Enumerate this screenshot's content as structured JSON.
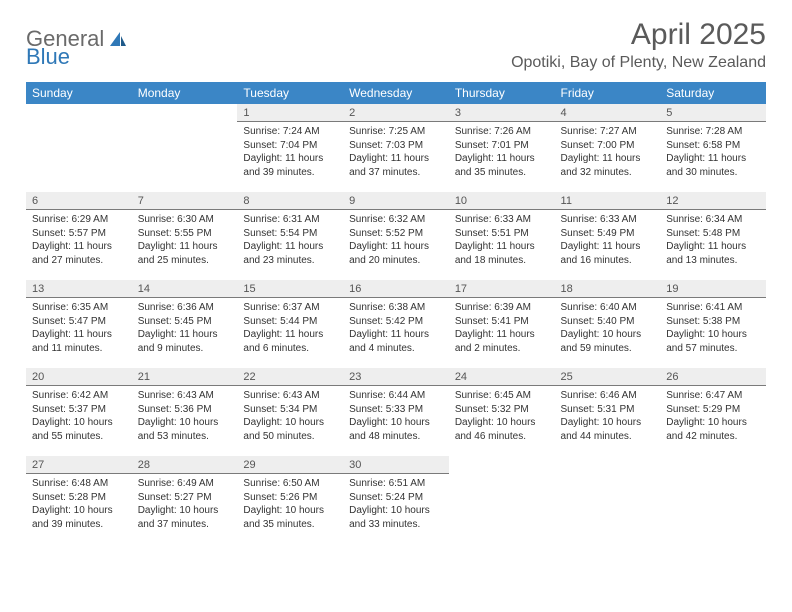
{
  "brand": {
    "word1": "General",
    "word2": "Blue"
  },
  "header": {
    "month_title": "April 2025",
    "location": "Opotiki, Bay of Plenty, New Zealand"
  },
  "colors": {
    "header_blue": "#3b86c6",
    "daynum_bg": "#eeeeee",
    "daynum_border": "#7a7a7a",
    "text": "#333333",
    "logo_gray": "#6a6a6a",
    "logo_blue": "#2f78b7"
  },
  "day_labels": [
    "Sunday",
    "Monday",
    "Tuesday",
    "Wednesday",
    "Thursday",
    "Friday",
    "Saturday"
  ],
  "weeks": [
    [
      {
        "n": "",
        "sr": "",
        "ss": "",
        "dl": ""
      },
      {
        "n": "",
        "sr": "",
        "ss": "",
        "dl": ""
      },
      {
        "n": "1",
        "sr": "Sunrise: 7:24 AM",
        "ss": "Sunset: 7:04 PM",
        "dl": "Daylight: 11 hours and 39 minutes."
      },
      {
        "n": "2",
        "sr": "Sunrise: 7:25 AM",
        "ss": "Sunset: 7:03 PM",
        "dl": "Daylight: 11 hours and 37 minutes."
      },
      {
        "n": "3",
        "sr": "Sunrise: 7:26 AM",
        "ss": "Sunset: 7:01 PM",
        "dl": "Daylight: 11 hours and 35 minutes."
      },
      {
        "n": "4",
        "sr": "Sunrise: 7:27 AM",
        "ss": "Sunset: 7:00 PM",
        "dl": "Daylight: 11 hours and 32 minutes."
      },
      {
        "n": "5",
        "sr": "Sunrise: 7:28 AM",
        "ss": "Sunset: 6:58 PM",
        "dl": "Daylight: 11 hours and 30 minutes."
      }
    ],
    [
      {
        "n": "6",
        "sr": "Sunrise: 6:29 AM",
        "ss": "Sunset: 5:57 PM",
        "dl": "Daylight: 11 hours and 27 minutes."
      },
      {
        "n": "7",
        "sr": "Sunrise: 6:30 AM",
        "ss": "Sunset: 5:55 PM",
        "dl": "Daylight: 11 hours and 25 minutes."
      },
      {
        "n": "8",
        "sr": "Sunrise: 6:31 AM",
        "ss": "Sunset: 5:54 PM",
        "dl": "Daylight: 11 hours and 23 minutes."
      },
      {
        "n": "9",
        "sr": "Sunrise: 6:32 AM",
        "ss": "Sunset: 5:52 PM",
        "dl": "Daylight: 11 hours and 20 minutes."
      },
      {
        "n": "10",
        "sr": "Sunrise: 6:33 AM",
        "ss": "Sunset: 5:51 PM",
        "dl": "Daylight: 11 hours and 18 minutes."
      },
      {
        "n": "11",
        "sr": "Sunrise: 6:33 AM",
        "ss": "Sunset: 5:49 PM",
        "dl": "Daylight: 11 hours and 16 minutes."
      },
      {
        "n": "12",
        "sr": "Sunrise: 6:34 AM",
        "ss": "Sunset: 5:48 PM",
        "dl": "Daylight: 11 hours and 13 minutes."
      }
    ],
    [
      {
        "n": "13",
        "sr": "Sunrise: 6:35 AM",
        "ss": "Sunset: 5:47 PM",
        "dl": "Daylight: 11 hours and 11 minutes."
      },
      {
        "n": "14",
        "sr": "Sunrise: 6:36 AM",
        "ss": "Sunset: 5:45 PM",
        "dl": "Daylight: 11 hours and 9 minutes."
      },
      {
        "n": "15",
        "sr": "Sunrise: 6:37 AM",
        "ss": "Sunset: 5:44 PM",
        "dl": "Daylight: 11 hours and 6 minutes."
      },
      {
        "n": "16",
        "sr": "Sunrise: 6:38 AM",
        "ss": "Sunset: 5:42 PM",
        "dl": "Daylight: 11 hours and 4 minutes."
      },
      {
        "n": "17",
        "sr": "Sunrise: 6:39 AM",
        "ss": "Sunset: 5:41 PM",
        "dl": "Daylight: 11 hours and 2 minutes."
      },
      {
        "n": "18",
        "sr": "Sunrise: 6:40 AM",
        "ss": "Sunset: 5:40 PM",
        "dl": "Daylight: 10 hours and 59 minutes."
      },
      {
        "n": "19",
        "sr": "Sunrise: 6:41 AM",
        "ss": "Sunset: 5:38 PM",
        "dl": "Daylight: 10 hours and 57 minutes."
      }
    ],
    [
      {
        "n": "20",
        "sr": "Sunrise: 6:42 AM",
        "ss": "Sunset: 5:37 PM",
        "dl": "Daylight: 10 hours and 55 minutes."
      },
      {
        "n": "21",
        "sr": "Sunrise: 6:43 AM",
        "ss": "Sunset: 5:36 PM",
        "dl": "Daylight: 10 hours and 53 minutes."
      },
      {
        "n": "22",
        "sr": "Sunrise: 6:43 AM",
        "ss": "Sunset: 5:34 PM",
        "dl": "Daylight: 10 hours and 50 minutes."
      },
      {
        "n": "23",
        "sr": "Sunrise: 6:44 AM",
        "ss": "Sunset: 5:33 PM",
        "dl": "Daylight: 10 hours and 48 minutes."
      },
      {
        "n": "24",
        "sr": "Sunrise: 6:45 AM",
        "ss": "Sunset: 5:32 PM",
        "dl": "Daylight: 10 hours and 46 minutes."
      },
      {
        "n": "25",
        "sr": "Sunrise: 6:46 AM",
        "ss": "Sunset: 5:31 PM",
        "dl": "Daylight: 10 hours and 44 minutes."
      },
      {
        "n": "26",
        "sr": "Sunrise: 6:47 AM",
        "ss": "Sunset: 5:29 PM",
        "dl": "Daylight: 10 hours and 42 minutes."
      }
    ],
    [
      {
        "n": "27",
        "sr": "Sunrise: 6:48 AM",
        "ss": "Sunset: 5:28 PM",
        "dl": "Daylight: 10 hours and 39 minutes."
      },
      {
        "n": "28",
        "sr": "Sunrise: 6:49 AM",
        "ss": "Sunset: 5:27 PM",
        "dl": "Daylight: 10 hours and 37 minutes."
      },
      {
        "n": "29",
        "sr": "Sunrise: 6:50 AM",
        "ss": "Sunset: 5:26 PM",
        "dl": "Daylight: 10 hours and 35 minutes."
      },
      {
        "n": "30",
        "sr": "Sunrise: 6:51 AM",
        "ss": "Sunset: 5:24 PM",
        "dl": "Daylight: 10 hours and 33 minutes."
      },
      {
        "n": "",
        "sr": "",
        "ss": "",
        "dl": ""
      },
      {
        "n": "",
        "sr": "",
        "ss": "",
        "dl": ""
      },
      {
        "n": "",
        "sr": "",
        "ss": "",
        "dl": ""
      }
    ]
  ]
}
